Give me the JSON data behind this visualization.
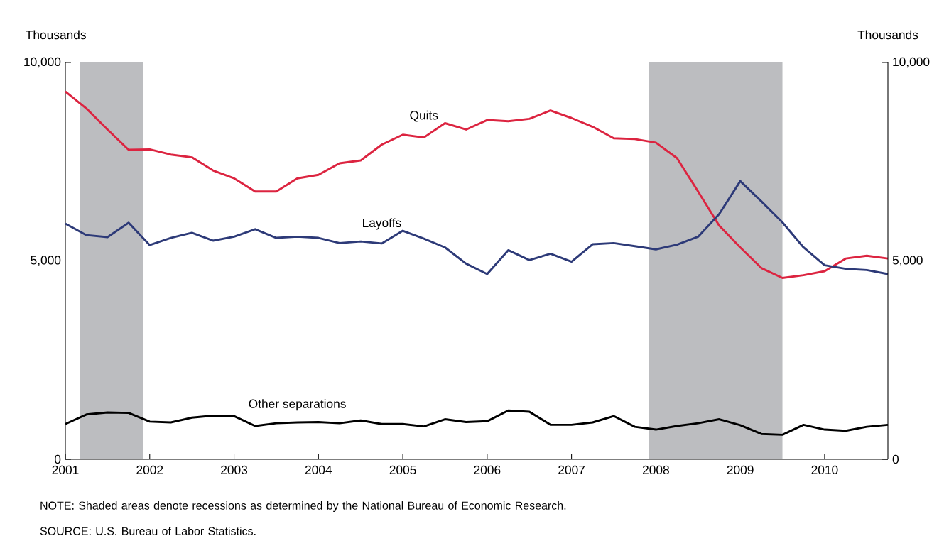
{
  "chart_data": {
    "type": "line",
    "ylabel": "Thousands",
    "y2label": "Thousands",
    "x": [
      2001,
      2001.25,
      2001.5,
      2001.75,
      2002,
      2002.25,
      2002.5,
      2002.75,
      2003,
      2003.25,
      2003.5,
      2003.75,
      2004,
      2004.25,
      2004.5,
      2004.75,
      2005,
      2005.25,
      2005.5,
      2005.75,
      2006,
      2006.25,
      2006.5,
      2006.75,
      2007,
      2007.25,
      2007.5,
      2007.75,
      2008,
      2008.25,
      2008.5,
      2008.75,
      2009,
      2009.25,
      2009.5,
      2009.75,
      2010,
      2010.25,
      2010.5,
      2010.75
    ],
    "series": [
      {
        "name": "Quits",
        "color": "#dc2440",
        "values": [
          9270,
          8840,
          8310,
          7800,
          7810,
          7680,
          7610,
          7280,
          7080,
          6750,
          6750,
          7080,
          7170,
          7460,
          7530,
          7930,
          8180,
          8110,
          8470,
          8310,
          8550,
          8520,
          8580,
          8790,
          8600,
          8380,
          8090,
          8070,
          7980,
          7590,
          6750,
          5890,
          5340,
          4820,
          4570,
          4640,
          4740,
          5060,
          5130,
          5060
        ]
      },
      {
        "name": "Layoffs",
        "color": "#2d3a78",
        "values": [
          5940,
          5650,
          5600,
          5960,
          5400,
          5580,
          5710,
          5510,
          5610,
          5800,
          5580,
          5610,
          5580,
          5450,
          5490,
          5440,
          5760,
          5560,
          5340,
          4930,
          4670,
          5270,
          5020,
          5180,
          4980,
          5420,
          5450,
          5370,
          5290,
          5410,
          5610,
          6180,
          7010,
          6500,
          5970,
          5340,
          4890,
          4800,
          4770,
          4670
        ]
      },
      {
        "name": "Other separations",
        "color": "#000000",
        "values": [
          890,
          1130,
          1180,
          1170,
          950,
          930,
          1050,
          1100,
          1090,
          840,
          910,
          930,
          940,
          910,
          980,
          890,
          890,
          830,
          1010,
          940,
          960,
          1230,
          1200,
          870,
          870,
          930,
          1090,
          820,
          750,
          840,
          910,
          1010,
          860,
          640,
          620,
          870,
          750,
          720,
          820,
          870
        ]
      }
    ],
    "xlim": [
      2001,
      2010.75
    ],
    "xticks": [
      2001,
      2002,
      2003,
      2004,
      2005,
      2006,
      2007,
      2008,
      2009,
      2010
    ],
    "ylim": [
      0,
      10000
    ],
    "yticks": [
      0,
      {
        "value": 5000,
        "label": "5,000"
      },
      {
        "value": 10000,
        "label": "10,000"
      }
    ],
    "y2lim": [
      0,
      10000
    ],
    "y2ticks": [
      0,
      {
        "value": 5000,
        "label": "5,000"
      },
      {
        "value": 10000,
        "label": "10,000"
      }
    ],
    "bands": [
      {
        "axis": "x",
        "from": 2001.17,
        "to": 2001.92,
        "color": "#bcbdc0"
      },
      {
        "axis": "x",
        "from": 2007.92,
        "to": 2009.5,
        "color": "#bcbdc0"
      }
    ],
    "legend": false,
    "annotations": [
      "NOTE: Shaded areas denote recessions as determined by the National Bureau of Economic Research.",
      "SOURCE: U.S. Bureau of Labor Statistics."
    ]
  }
}
